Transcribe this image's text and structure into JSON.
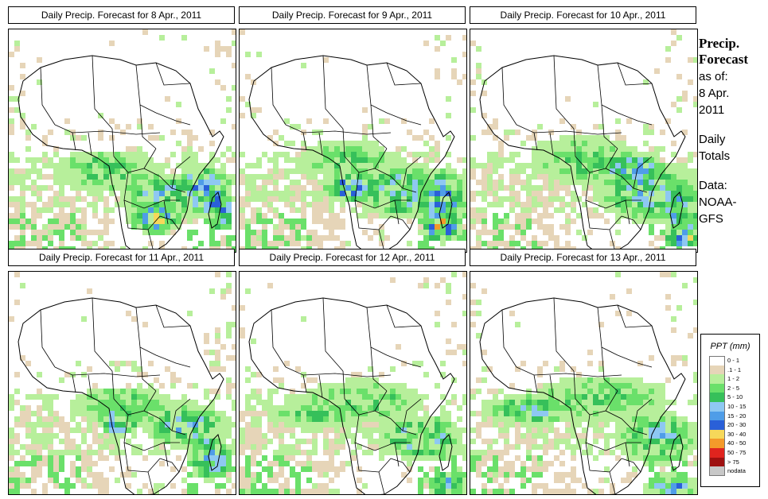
{
  "panels": [
    {
      "title": "Daily Precip. Forecast for  8 Apr., 2011"
    },
    {
      "title": "Daily Precip. Forecast for  9 Apr., 2011"
    },
    {
      "title": "Daily Precip. Forecast for  10 Apr., 2011"
    },
    {
      "title": "Daily Precip. Forecast for  11 Apr., 2011"
    },
    {
      "title": "Daily Precip. Forecast for  12 Apr., 2011"
    },
    {
      "title": "Daily Precip. Forecast for  13 Apr., 2011"
    }
  ],
  "side": {
    "title1": "Precip.",
    "title2": "Forecast",
    "asof": "as of:",
    "date1": "8 Apr.",
    "date2": "2011",
    "totals1": "Daily",
    "totals2": "Totals",
    "data1": "Data:",
    "data2": "NOAA-",
    "data3": "GFS"
  },
  "legend": {
    "title": "PPT (mm)",
    "items": [
      {
        "label": "0 - 1",
        "color": "#ffffff"
      },
      {
        "label": ".1 - 1",
        "color": "#e6d5b8"
      },
      {
        "label": "1 - 2",
        "color": "#b7ef9b"
      },
      {
        "label": "2 - 5",
        "color": "#6ae06a"
      },
      {
        "label": "5 - 10",
        "color": "#36c05a"
      },
      {
        "label": "10 - 15",
        "color": "#8ec8f2"
      },
      {
        "label": "15 - 20",
        "color": "#4f9de8"
      },
      {
        "label": "20 - 30",
        "color": "#2a60d8"
      },
      {
        "label": "30 - 40",
        "color": "#f6d85a"
      },
      {
        "label": "40 - 50",
        "color": "#f49a2a"
      },
      {
        "label": "50 - 75",
        "color": "#e0241e"
      },
      {
        "label": "> 75",
        "color": "#9e1010"
      },
      {
        "label": "nodata",
        "color": "#c8c8c8"
      }
    ]
  }
}
